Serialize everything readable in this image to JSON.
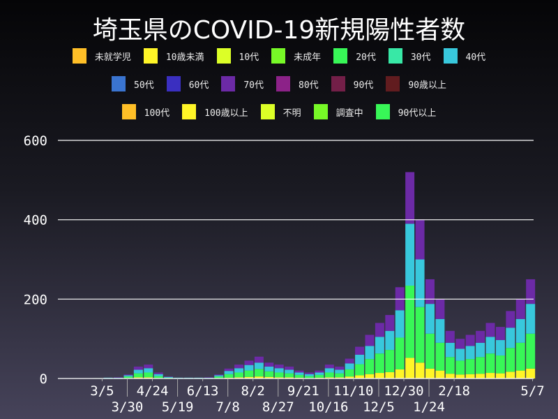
{
  "chart_data": {
    "type": "bar",
    "stacked": true,
    "title": "埼玉県のCOVID-19新規陽性者数",
    "xlabel": "",
    "ylabel": "",
    "ylim": [
      0,
      620
    ],
    "xlim": [
      "2020-01-21",
      "2021-05-08"
    ],
    "grid": true,
    "legend_position": "top",
    "y_ticks": [
      "0",
      "200",
      "400",
      "600"
    ],
    "x_ticks": [
      {
        "date": "2020-03-05",
        "label": "3/5"
      },
      {
        "date": "2020-03-30",
        "label": "3/30"
      },
      {
        "date": "2020-04-24",
        "label": "4/24"
      },
      {
        "date": "2020-05-19",
        "label": "5/19"
      },
      {
        "date": "2020-06-13",
        "label": "6/13"
      },
      {
        "date": "2020-07-08",
        "label": "7/8"
      },
      {
        "date": "2020-08-02",
        "label": "8/2"
      },
      {
        "date": "2020-08-27",
        "label": "8/27"
      },
      {
        "date": "2020-09-21",
        "label": "9/21"
      },
      {
        "date": "2020-10-16",
        "label": "10/16"
      },
      {
        "date": "2020-11-10",
        "label": "11/10"
      },
      {
        "date": "2020-12-05",
        "label": "12/5"
      },
      {
        "date": "2020-12-30",
        "label": "12/30"
      },
      {
        "date": "2021-01-24",
        "label": "1/24"
      },
      {
        "date": "2021-02-18",
        "label": "2/18"
      },
      {
        "date": "2021-05-07",
        "label": "5/7"
      }
    ],
    "legend": [
      {
        "name": "未就学児",
        "color": "#ffbf27"
      },
      {
        "name": "10歳未満",
        "color": "#fff527"
      },
      {
        "name": "10代",
        "color": "#dcff27"
      },
      {
        "name": "未成年",
        "color": "#77f927"
      },
      {
        "name": "20代",
        "color": "#38f757"
      },
      {
        "name": "30代",
        "color": "#38e8a6"
      },
      {
        "name": "40代",
        "color": "#38c8dc"
      },
      {
        "name": "50代",
        "color": "#3a74d0"
      },
      {
        "name": "60代",
        "color": "#3a2fc0"
      },
      {
        "name": "70代",
        "color": "#6c2aa6"
      },
      {
        "name": "80代",
        "color": "#8c2288"
      },
      {
        "name": "90代",
        "color": "#731f48"
      },
      {
        "name": "90歳以上",
        "color": "#611c1f"
      },
      {
        "name": "100代",
        "color": "#ffbf27"
      },
      {
        "name": "100歳以上",
        "color": "#fff527"
      },
      {
        "name": "不明",
        "color": "#dcff27"
      },
      {
        "name": "調査中",
        "color": "#77f927"
      },
      {
        "name": "90代以上",
        "color": "#38f757"
      }
    ],
    "x": [
      "2020-01-30",
      "2020-02-09",
      "2020-02-19",
      "2020-03-01",
      "2020-03-11",
      "2020-03-21",
      "2020-03-31",
      "2020-04-10",
      "2020-04-20",
      "2020-04-30",
      "2020-05-10",
      "2020-05-20",
      "2020-05-30",
      "2020-06-09",
      "2020-06-19",
      "2020-06-29",
      "2020-07-09",
      "2020-07-19",
      "2020-07-29",
      "2020-08-08",
      "2020-08-18",
      "2020-08-28",
      "2020-09-07",
      "2020-09-17",
      "2020-09-27",
      "2020-10-07",
      "2020-10-17",
      "2020-10-27",
      "2020-11-06",
      "2020-11-16",
      "2020-11-26",
      "2020-12-06",
      "2020-12-16",
      "2020-12-26",
      "2021-01-05",
      "2021-01-15",
      "2021-01-25",
      "2021-02-04",
      "2021-02-14",
      "2021-02-24",
      "2021-03-06",
      "2021-03-16",
      "2021-03-26",
      "2021-04-05",
      "2021-04-15",
      "2021-04-25",
      "2021-05-05"
    ],
    "series": [
      {
        "name": "10歳未満",
        "color": "#fff527",
        "values": [
          0,
          0,
          0,
          0,
          0,
          0,
          1,
          3,
          3,
          1,
          0,
          0,
          0,
          0,
          0,
          1,
          2,
          3,
          4,
          5,
          4,
          3,
          3,
          2,
          1,
          2,
          3,
          3,
          5,
          8,
          11,
          14,
          16,
          23,
          52,
          40,
          25,
          20,
          12,
          10,
          11,
          12,
          14,
          13,
          17,
          20,
          25
        ]
      },
      {
        "name": "20代",
        "color": "#38f757",
        "values": [
          0,
          0,
          0,
          1,
          1,
          1,
          4,
          10,
          12,
          5,
          2,
          1,
          1,
          1,
          1,
          4,
          9,
          12,
          16,
          19,
          14,
          12,
          10,
          7,
          5,
          7,
          12,
          10,
          18,
          28,
          38,
          49,
          56,
          80,
          182,
          140,
          88,
          70,
          42,
          35,
          38,
          42,
          49,
          45,
          60,
          70,
          88
        ]
      },
      {
        "name": "40代",
        "color": "#38c8dc",
        "values": [
          0,
          0,
          0,
          0,
          1,
          1,
          3,
          9,
          11,
          5,
          2,
          1,
          1,
          1,
          1,
          3,
          8,
          11,
          14,
          16,
          12,
          11,
          9,
          6,
          5,
          6,
          11,
          9,
          15,
          24,
          33,
          42,
          48,
          69,
          156,
          120,
          75,
          60,
          36,
          30,
          33,
          36,
          42,
          39,
          51,
          60,
          75
        ]
      },
      {
        "name": "70代",
        "color": "#6c2aa6",
        "values": [
          0,
          0,
          0,
          0,
          0,
          1,
          2,
          8,
          9,
          4,
          1,
          0,
          0,
          0,
          1,
          2,
          6,
          9,
          11,
          15,
          10,
          9,
          8,
          5,
          4,
          5,
          9,
          8,
          12,
          20,
          28,
          35,
          40,
          58,
          130,
          100,
          62,
          50,
          30,
          25,
          28,
          30,
          35,
          33,
          42,
          50,
          62
        ]
      }
    ]
  }
}
